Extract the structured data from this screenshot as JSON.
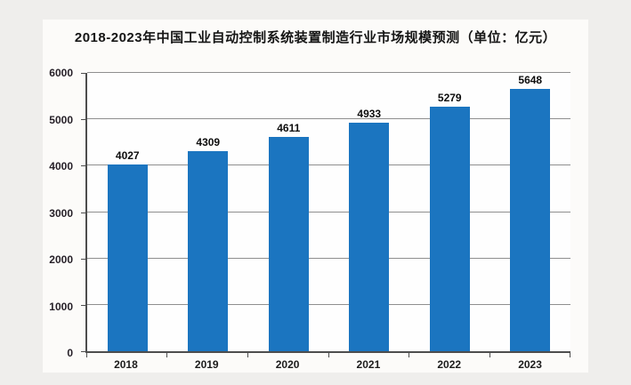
{
  "title": "2018-2023年中国工业自动控制系统装置制造行业市场规模预测（单位：亿元）",
  "colors": {
    "page_bg": "#efeeec",
    "panel_bg": "#fcfbf9",
    "plot_bg": "#fefefe",
    "bar": "#1b75c0",
    "gridline": "#8f8f8f",
    "axis": "#4d4d4d",
    "text": "#151515"
  },
  "chart_data": {
    "type": "bar",
    "title": "2018-2023年中国工业自动控制系统装置制造行业市场规模预测（单位：亿元）",
    "categories": [
      "2018",
      "2019",
      "2020",
      "2021",
      "2022",
      "2023"
    ],
    "values": [
      4027,
      4309,
      4611,
      4933,
      5279,
      5648
    ],
    "unit": "亿元",
    "xlabel": "",
    "ylabel": "",
    "ylim": [
      0,
      6000
    ],
    "yticks": [
      0,
      1000,
      2000,
      3000,
      4000,
      5000,
      6000
    ],
    "grid": true,
    "legend_position": "none",
    "data_labels": true
  }
}
